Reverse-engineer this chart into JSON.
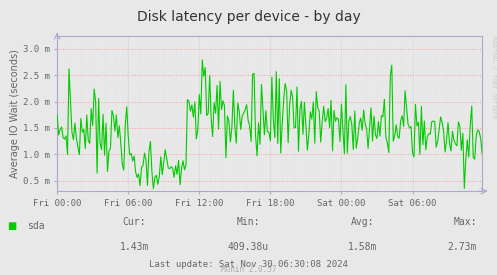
{
  "title": "Disk latency per device - by day",
  "ylabel": "Average IO Wait (seconds)",
  "bg_color": "#e8e8e8",
  "plot_bg_color": "#e8e8e8",
  "grid_color_h": "#ff9999",
  "grid_color_v": "#ccccdd",
  "line_color": "#00cc00",
  "yticks": [
    0.5,
    1.0,
    1.5,
    2.0,
    2.5,
    3.0
  ],
  "ytick_labels": [
    "0.5 m",
    "1.0 m",
    "1.5 m",
    "2.0 m",
    "2.5 m",
    "3.0 m"
  ],
  "xtick_labels": [
    "Fri 00:00",
    "Fri 06:00",
    "Fri 12:00",
    "Fri 18:00",
    "Sat 00:00",
    "Sat 06:00"
  ],
  "ylim": [
    0.3,
    3.25
  ],
  "xlim": [
    0,
    287
  ],
  "legend_label": "sda",
  "legend_color": "#00cc00",
  "cur_label": "Cur:",
  "cur_val": "1.43m",
  "min_label": "Min:",
  "min_val": "409.38u",
  "avg_label": "Avg:",
  "avg_val": "1.58m",
  "max_label": "Max:",
  "max_val": "2.73m",
  "last_update": "Last update: Sat Nov 30 06:30:08 2024",
  "munin_version": "Munin 2.0.57",
  "rrdtool_label": "RRDTOOL / TOBI OETIKER",
  "axis_color": "#aaaacc",
  "tick_color": "#666666",
  "title_color": "#333333"
}
